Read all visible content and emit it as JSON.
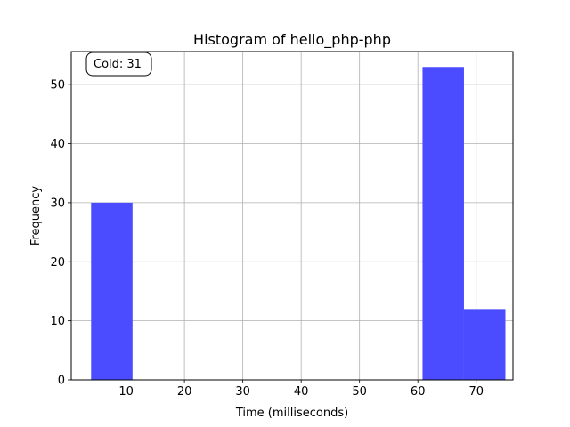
{
  "chart_data": {
    "type": "bar",
    "title": "Histogram of hello_php-php",
    "xlabel": "Time (milliseconds)",
    "ylabel": "Frequency",
    "annotation": "Cold: 31",
    "xlim": [
      0.6,
      76.3
    ],
    "ylim": [
      0,
      55.6
    ],
    "xticks": [
      10,
      20,
      30,
      40,
      50,
      60,
      70
    ],
    "yticks": [
      0,
      10,
      20,
      30,
      40,
      50
    ],
    "grid": true,
    "bar_color": "#4b4bff",
    "bins": [
      {
        "start": 4.0,
        "end": 11.1,
        "count": 30
      },
      {
        "start": 11.1,
        "end": 18.2,
        "count": 0
      },
      {
        "start": 18.2,
        "end": 25.3,
        "count": 0
      },
      {
        "start": 25.3,
        "end": 32.4,
        "count": 0
      },
      {
        "start": 32.4,
        "end": 39.5,
        "count": 0
      },
      {
        "start": 39.5,
        "end": 46.6,
        "count": 0
      },
      {
        "start": 46.6,
        "end": 53.7,
        "count": 0
      },
      {
        "start": 53.7,
        "end": 60.8,
        "count": 0
      },
      {
        "start": 60.8,
        "end": 67.9,
        "count": 53
      },
      {
        "start": 67.9,
        "end": 75.0,
        "count": 12
      }
    ]
  }
}
